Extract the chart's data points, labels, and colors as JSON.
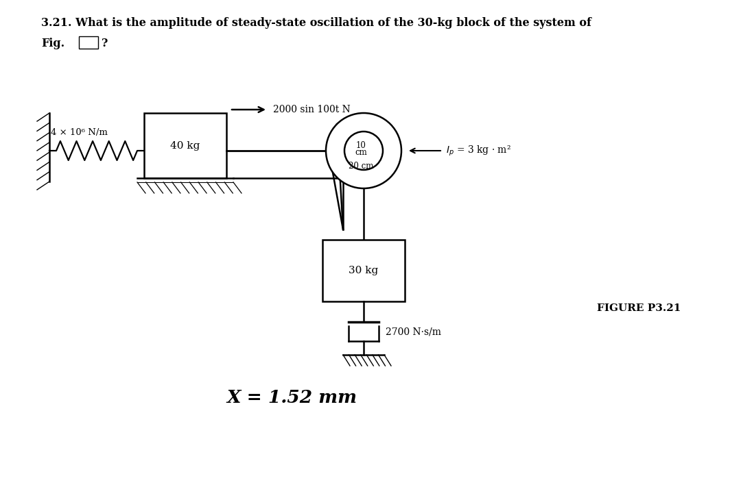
{
  "title_line1": "3.21. What is the amplitude of steady-state oscillation of the 30-kg block of the system of",
  "title_line2": "Fig.",
  "title_q": "?",
  "bg_color": "#ffffff",
  "fig_width": 10.8,
  "fig_height": 7.27,
  "answer_text": "X = 1.52 mm",
  "figure_label": "FIGURE P3.21",
  "spring_label": "4 × 10⁶ N/m",
  "force_label": "2000 sin 100t N",
  "mass1_label": "40 kg",
  "mass2_label": "30 kg",
  "inertia_label": "I_p = 3 kg · m²",
  "damper_label": "2700 N·s/m",
  "r1_label": "10\ncm",
  "r2_label": "20 cm"
}
